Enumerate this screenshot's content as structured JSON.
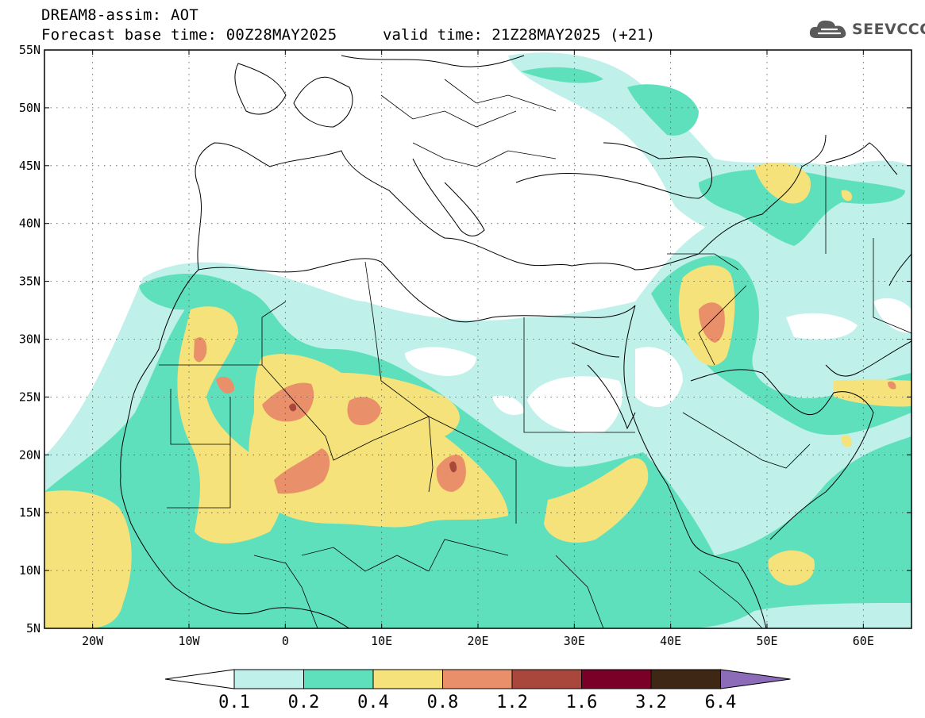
{
  "header": {
    "title": "DREAM8-assim: AOT",
    "base_time": "Forecast base time: 00Z28MAY2025",
    "valid_time": "valid time: 21Z28MAY2025 (+21)",
    "logo_text": "SEEVCCC",
    "logo_icon": "cloud-icon"
  },
  "map": {
    "lon_range": [
      -25,
      65
    ],
    "lat_range": [
      5,
      55
    ],
    "lon_ticks": [
      {
        "value": -20,
        "label": "20W"
      },
      {
        "value": -10,
        "label": "10W"
      },
      {
        "value": 0,
        "label": "0"
      },
      {
        "value": 10,
        "label": "10E"
      },
      {
        "value": 20,
        "label": "20E"
      },
      {
        "value": 30,
        "label": "30E"
      },
      {
        "value": 40,
        "label": "40E"
      },
      {
        "value": 50,
        "label": "50E"
      },
      {
        "value": 60,
        "label": "60E"
      }
    ],
    "lat_ticks": [
      {
        "value": 55,
        "label": "55N"
      },
      {
        "value": 50,
        "label": "50N"
      },
      {
        "value": 45,
        "label": "45N"
      },
      {
        "value": 40,
        "label": "40N"
      },
      {
        "value": 35,
        "label": "35N"
      },
      {
        "value": 30,
        "label": "30N"
      },
      {
        "value": 25,
        "label": "25N"
      },
      {
        "value": 20,
        "label": "20N"
      },
      {
        "value": 15,
        "label": "15N"
      },
      {
        "value": 10,
        "label": "10N"
      },
      {
        "value": 5,
        "label": "5N"
      }
    ],
    "grid": "dotted"
  },
  "colorbar": {
    "labels": [
      "0.1",
      "0.2",
      "0.4",
      "0.8",
      "1.2",
      "1.6",
      "3.2",
      "6.4"
    ],
    "colors": [
      "#ffffff",
      "#bff0ea",
      "#5ee0bd",
      "#f5e27a",
      "#e9906a",
      "#a9473d",
      "#7a0027",
      "#3f2716",
      "#8c6bb8"
    ]
  },
  "aot_levels": [
    {
      "level": "0.1",
      "color": "#bff0ea"
    },
    {
      "level": "0.2",
      "color": "#5ee0bd"
    },
    {
      "level": "0.4",
      "color": "#f5e27a"
    },
    {
      "level": "0.8",
      "color": "#e9906a"
    },
    {
      "level": "1.2",
      "color": "#a9473d"
    }
  ]
}
